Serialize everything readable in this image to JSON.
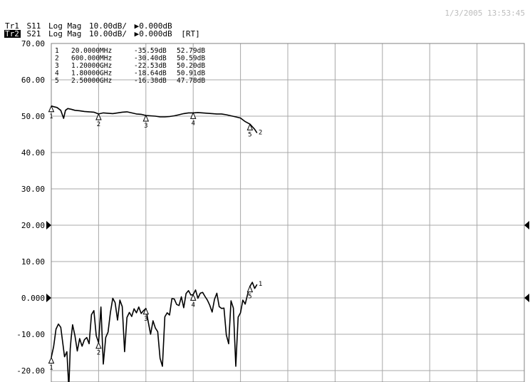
{
  "header": {
    "timestamp": "1/3/2005 13:53:45",
    "trace1": {
      "id": "Tr1",
      "param": "S11",
      "format": "Log Mag",
      "scale": "10.00dB/",
      "ref": "▶0.000dB",
      "extra": ""
    },
    "trace2": {
      "id": "Tr2",
      "param": "S21",
      "format": "Log Mag",
      "scale": "10.00dB/",
      "ref": "▶0.000dB",
      "extra": "[RT]"
    }
  },
  "colors": {
    "background": "#ffffff",
    "grid": "#a8a8a8",
    "trace": "#000000",
    "timestamp": "#bdbdbd"
  },
  "marker_table": [
    {
      "num": "1",
      "freq": "20.0000MHz",
      "s11": "-35.59dB",
      "s21": "52.79dB"
    },
    {
      "num": "2",
      "freq": "600.000MHz",
      "s11": "-30.40dB",
      "s21": "50.59dB"
    },
    {
      "num": "3",
      "freq": "1.20000GHz",
      "s11": "-22.53dB",
      "s21": "50.20dB"
    },
    {
      "num": "4",
      "freq": "1.80000GHz",
      "s11": "-18.64dB",
      "s21": "50.91dB"
    },
    {
      "num": "5",
      "freq": "2.50000GHz",
      "s11": "-16.38dB",
      "s21": "47.78dB"
    }
  ],
  "chart_data": {
    "type": "line",
    "title": "",
    "xlabel": "",
    "ylabel": "",
    "y_ticks": [
      "70.00",
      "60.00",
      "50.00",
      "40.00",
      "30.00",
      "20.00",
      "10.00",
      "0.000",
      "-10.00",
      "-20.00"
    ],
    "ylim": [
      -20,
      70
    ],
    "xlim": [
      0,
      10
    ],
    "x_divisions": 10,
    "grid": true,
    "reference_level_arrows": [
      20,
      0
    ],
    "series": [
      {
        "trace": "Tr2",
        "markers": [
          {
            "label": "1",
            "x": 0,
            "y": 52.79
          },
          {
            "label": "2",
            "x": 1.0,
            "y": 50.59
          },
          {
            "label": "3",
            "x": 2.0,
            "y": 50.2
          },
          {
            "label": "4",
            "x": 3.0,
            "y": 50.91
          },
          {
            "label": "5",
            "x": 4.2,
            "y": 47.78
          }
        ],
        "x": [
          0,
          0.05,
          0.12,
          0.2,
          0.26,
          0.3,
          0.35,
          0.42,
          0.5,
          0.6,
          0.7,
          0.8,
          0.9,
          1.0,
          1.1,
          1.2,
          1.3,
          1.4,
          1.5,
          1.6,
          1.7,
          1.8,
          1.9,
          2.0,
          2.1,
          2.2,
          2.3,
          2.4,
          2.5,
          2.6,
          2.7,
          2.8,
          2.9,
          3.0,
          3.1,
          3.2,
          3.3,
          3.4,
          3.5,
          3.6,
          3.7,
          3.8,
          3.9,
          4.0,
          4.1,
          4.2,
          4.3,
          4.35
        ],
        "y": [
          52.8,
          52.6,
          52.4,
          51.6,
          49.4,
          51.6,
          52.1,
          51.9,
          51.6,
          51.5,
          51.3,
          51.2,
          51.1,
          50.6,
          50.9,
          50.8,
          50.7,
          50.9,
          51.1,
          51.2,
          50.9,
          50.6,
          50.5,
          50.2,
          50.1,
          50.0,
          49.8,
          49.8,
          49.9,
          50.1,
          50.4,
          50.7,
          50.9,
          50.9,
          51.0,
          50.9,
          50.8,
          50.7,
          50.6,
          50.6,
          50.4,
          50.1,
          49.8,
          49.5,
          48.5,
          47.8,
          46.4,
          45.4
        ]
      },
      {
        "trace": "Tr1",
        "markers": [
          {
            "label": "1",
            "x": 0,
            "y": -16.4
          },
          {
            "label": "2",
            "x": 1.0,
            "y": -12.3
          },
          {
            "label": "3",
            "x": 2.0,
            "y": -2.9
          },
          {
            "label": "4",
            "x": 3.0,
            "y": 0.9
          },
          {
            "label": "5",
            "x": 4.2,
            "y": 3.2
          }
        ],
        "x": [
          0,
          0.05,
          0.1,
          0.15,
          0.2,
          0.28,
          0.33,
          0.37,
          0.4,
          0.42,
          0.45,
          0.5,
          0.55,
          0.6,
          0.65,
          0.7,
          0.75,
          0.8,
          0.85,
          0.9,
          0.95,
          1.0,
          1.05,
          1.1,
          1.15,
          1.2,
          1.25,
          1.3,
          1.35,
          1.4,
          1.45,
          1.5,
          1.55,
          1.6,
          1.65,
          1.7,
          1.75,
          1.8,
          1.85,
          1.9,
          1.95,
          2.0,
          2.05,
          2.1,
          2.15,
          2.2,
          2.25,
          2.3,
          2.35,
          2.4,
          2.45,
          2.5,
          2.55,
          2.6,
          2.65,
          2.7,
          2.75,
          2.8,
          2.85,
          2.9,
          2.95,
          3.0,
          3.05,
          3.1,
          3.15,
          3.2,
          3.25,
          3.3,
          3.35,
          3.4,
          3.45,
          3.5,
          3.55,
          3.6,
          3.65,
          3.7,
          3.75,
          3.8,
          3.85,
          3.9,
          3.95,
          4.0,
          4.05,
          4.1,
          4.15,
          4.2,
          4.25,
          4.3,
          4.35
        ],
        "y": [
          -16.4,
          -13.4,
          -8.6,
          -7.2,
          -8.1,
          -16.2,
          -14.8,
          -24.8,
          -14.0,
          -11.0,
          -7.4,
          -10.4,
          -14.6,
          -11.2,
          -13.3,
          -11.5,
          -10.9,
          -12.6,
          -4.6,
          -3.5,
          -10.4,
          -12.3,
          -2.5,
          -18.2,
          -10.9,
          -9.4,
          -4.0,
          -0.1,
          -1.3,
          -6.1,
          -0.6,
          -2.4,
          -14.8,
          -5.4,
          -4.0,
          -5.1,
          -3.0,
          -4.1,
          -2.5,
          -4.3,
          -3.5,
          -2.9,
          -6.6,
          -10.0,
          -6.3,
          -8.3,
          -9.3,
          -16.6,
          -18.8,
          -5.2,
          -4.1,
          -4.7,
          -0.2,
          -0.3,
          -1.8,
          -2.1,
          0.3,
          -2.7,
          1.2,
          2.0,
          0.8,
          0.9,
          2.2,
          -0.1,
          1.3,
          1.5,
          0.4,
          -0.6,
          -2.0,
          -3.9,
          -0.4,
          1.3,
          -2.4,
          -2.9,
          -2.8,
          -10.2,
          -12.6,
          -0.8,
          -2.8,
          -18.8,
          -5.3,
          -4.1,
          -0.6,
          -1.7,
          1.0,
          3.2,
          4.3,
          2.6,
          3.7
        ]
      }
    ]
  }
}
